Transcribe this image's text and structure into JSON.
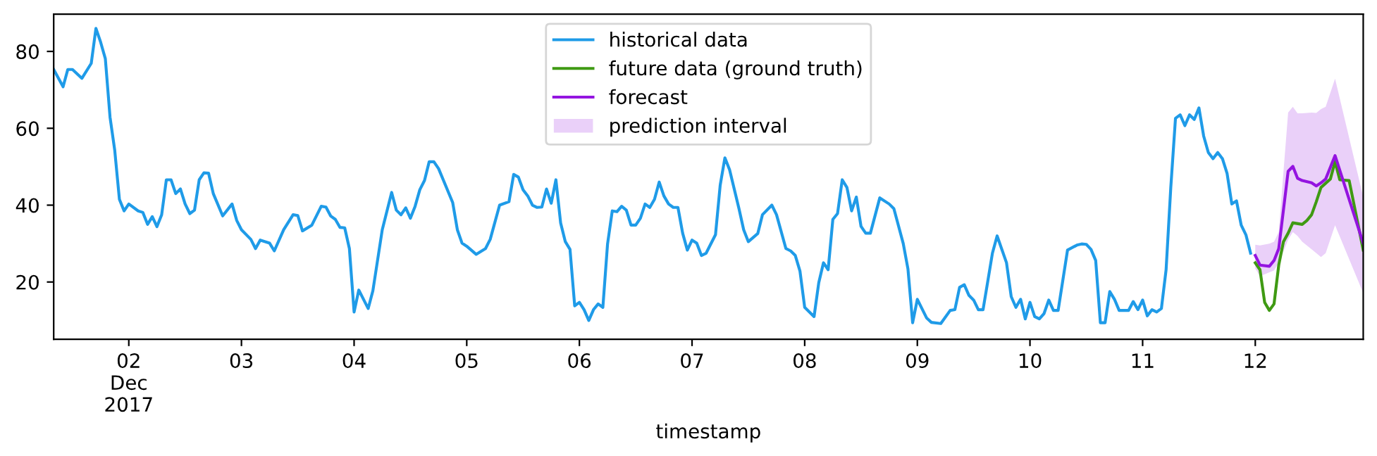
{
  "chart_data": {
    "type": "line",
    "xlabel": "timestamp",
    "legend": "top",
    "grid": false,
    "xlim": [
      "2017-12-01T08:00",
      "2017-12-12T23:00"
    ],
    "ylim": [
      5.1,
      89.7
    ],
    "yticks": [
      20,
      40,
      60,
      80
    ],
    "xticks": [
      {
        "value": "2017-12-02",
        "label": "02\nDec\n2017"
      },
      {
        "value": "2017-12-03",
        "label": "03"
      },
      {
        "value": "2017-12-04",
        "label": "04"
      },
      {
        "value": "2017-12-05",
        "label": "05"
      },
      {
        "value": "2017-12-06",
        "label": "06"
      },
      {
        "value": "2017-12-07",
        "label": "07"
      },
      {
        "value": "2017-12-08",
        "label": "08"
      },
      {
        "value": "2017-12-09",
        "label": "09"
      },
      {
        "value": "2017-12-10",
        "label": "10"
      },
      {
        "value": "2017-12-11",
        "label": "11"
      },
      {
        "value": "2017-12-12",
        "label": "12"
      }
    ],
    "series": [
      {
        "name": "historical data",
        "color": "#1f9be8",
        "x": [
          "2017-12-01T08:00",
          "2017-12-01T10:00",
          "2017-12-01T11:00",
          "2017-12-01T12:00",
          "2017-12-01T14:00",
          "2017-12-01T16:00",
          "2017-12-01T17:00",
          "2017-12-01T18:00",
          "2017-12-01T19:00",
          "2017-12-01T20:00",
          "2017-12-01T21:00",
          "2017-12-01T22:00",
          "2017-12-01T23:00",
          "2017-12-02T00:00",
          "2017-12-02T02:00",
          "2017-12-02T03:00",
          "2017-12-02T04:00",
          "2017-12-02T05:00",
          "2017-12-02T06:00",
          "2017-12-02T07:00",
          "2017-12-02T08:00",
          "2017-12-02T09:00",
          "2017-12-02T10:00",
          "2017-12-02T11:00",
          "2017-12-02T12:00",
          "2017-12-02T13:00",
          "2017-12-02T14:00",
          "2017-12-02T15:00",
          "2017-12-02T16:00",
          "2017-12-02T17:00",
          "2017-12-02T18:00",
          "2017-12-02T20:00",
          "2017-12-02T22:00",
          "2017-12-02T23:00",
          "2017-12-03T00:00",
          "2017-12-03T02:00",
          "2017-12-03T03:00",
          "2017-12-03T04:00",
          "2017-12-03T06:00",
          "2017-12-03T07:00",
          "2017-12-03T09:00",
          "2017-12-03T11:00",
          "2017-12-03T12:00",
          "2017-12-03T13:00",
          "2017-12-03T15:00",
          "2017-12-03T17:00",
          "2017-12-03T18:00",
          "2017-12-03T19:00",
          "2017-12-03T20:00",
          "2017-12-03T21:00",
          "2017-12-03T22:00",
          "2017-12-03T23:00",
          "2017-12-04T00:00",
          "2017-12-04T01:00",
          "2017-12-04T03:00",
          "2017-12-04T04:00",
          "2017-12-04T06:00",
          "2017-12-04T08:00",
          "2017-12-04T09:00",
          "2017-12-04T10:00",
          "2017-12-04T11:00",
          "2017-12-04T12:00",
          "2017-12-04T13:00",
          "2017-12-04T14:00",
          "2017-12-04T15:00",
          "2017-12-04T16:00",
          "2017-12-04T17:00",
          "2017-12-04T18:00",
          "2017-12-04T21:00",
          "2017-12-04T22:00",
          "2017-12-04T23:00",
          "2017-12-05T00:00",
          "2017-12-05T02:00",
          "2017-12-05T04:00",
          "2017-12-05T05:00",
          "2017-12-05T07:00",
          "2017-12-05T09:00",
          "2017-12-05T10:00",
          "2017-12-05T11:00",
          "2017-12-05T12:00",
          "2017-12-05T13:00",
          "2017-12-05T14:00",
          "2017-12-05T15:00",
          "2017-12-05T16:00",
          "2017-12-05T17:00",
          "2017-12-05T18:00",
          "2017-12-05T19:00",
          "2017-12-05T20:00",
          "2017-12-05T21:00",
          "2017-12-05T22:00",
          "2017-12-05T23:00",
          "2017-12-06T00:00",
          "2017-12-06T01:00",
          "2017-12-06T02:00",
          "2017-12-06T03:00",
          "2017-12-06T04:00",
          "2017-12-06T05:00",
          "2017-12-06T06:00",
          "2017-12-06T07:00",
          "2017-12-06T08:00",
          "2017-12-06T09:00",
          "2017-12-06T10:00",
          "2017-12-06T11:00",
          "2017-12-06T12:00",
          "2017-12-06T13:00",
          "2017-12-06T14:00",
          "2017-12-06T15:00",
          "2017-12-06T16:00",
          "2017-12-06T17:00",
          "2017-12-06T18:00",
          "2017-12-06T19:00",
          "2017-12-06T20:00",
          "2017-12-06T21:00",
          "2017-12-06T22:00",
          "2017-12-06T23:00",
          "2017-12-07T00:00",
          "2017-12-07T01:00",
          "2017-12-07T02:00",
          "2017-12-07T03:00",
          "2017-12-07T05:00",
          "2017-12-07T06:00",
          "2017-12-07T07:00",
          "2017-12-07T08:00",
          "2017-12-07T10:00",
          "2017-12-07T11:00",
          "2017-12-07T12:00",
          "2017-12-07T14:00",
          "2017-12-07T15:00",
          "2017-12-07T17:00",
          "2017-12-07T18:00",
          "2017-12-07T20:00",
          "2017-12-07T21:00",
          "2017-12-07T22:00",
          "2017-12-07T23:00",
          "2017-12-08T00:00",
          "2017-12-08T02:00",
          "2017-12-08T03:00",
          "2017-12-08T04:00",
          "2017-12-08T05:00",
          "2017-12-08T06:00",
          "2017-12-08T07:00",
          "2017-12-08T08:00",
          "2017-12-08T09:00",
          "2017-12-08T10:00",
          "2017-12-08T11:00",
          "2017-12-08T12:00",
          "2017-12-08T13:00",
          "2017-12-08T14:00",
          "2017-12-08T16:00",
          "2017-12-08T18:00",
          "2017-12-08T19:00",
          "2017-12-08T21:00",
          "2017-12-08T22:00",
          "2017-12-08T23:00",
          "2017-12-09T00:00",
          "2017-12-09T02:00",
          "2017-12-09T03:00",
          "2017-12-09T05:00",
          "2017-12-09T07:00",
          "2017-12-09T08:00",
          "2017-12-09T09:00",
          "2017-12-09T10:00",
          "2017-12-09T11:00",
          "2017-12-09T12:00",
          "2017-12-09T13:00",
          "2017-12-09T14:00",
          "2017-12-09T15:00",
          "2017-12-09T16:00",
          "2017-12-09T17:00",
          "2017-12-09T19:00",
          "2017-12-09T20:00",
          "2017-12-09T21:00",
          "2017-12-09T22:00",
          "2017-12-09T23:00",
          "2017-12-10T00:00",
          "2017-12-10T01:00",
          "2017-12-10T02:00",
          "2017-12-10T03:00",
          "2017-12-10T04:00",
          "2017-12-10T05:00",
          "2017-12-10T06:00",
          "2017-12-10T08:00",
          "2017-12-10T10:00",
          "2017-12-10T11:00",
          "2017-12-10T12:00",
          "2017-12-10T13:00",
          "2017-12-10T14:00",
          "2017-12-10T15:00",
          "2017-12-10T16:00",
          "2017-12-10T17:00",
          "2017-12-10T18:00",
          "2017-12-10T19:00",
          "2017-12-10T21:00",
          "2017-12-10T22:00",
          "2017-12-10T23:00",
          "2017-12-11T00:00",
          "2017-12-11T01:00",
          "2017-12-11T02:00",
          "2017-12-11T03:00",
          "2017-12-11T04:00",
          "2017-12-11T05:00",
          "2017-12-11T06:00",
          "2017-12-11T07:00",
          "2017-12-11T08:00",
          "2017-12-11T09:00",
          "2017-12-11T10:00",
          "2017-12-11T11:00",
          "2017-12-11T12:00",
          "2017-12-11T13:00",
          "2017-12-11T14:00",
          "2017-12-11T15:00",
          "2017-12-11T16:00",
          "2017-12-11T17:00",
          "2017-12-11T18:00",
          "2017-12-11T19:00",
          "2017-12-11T20:00",
          "2017-12-11T21:00",
          "2017-12-11T22:00",
          "2017-12-11T23:00"
        ],
        "values": [
          75.3,
          70.8,
          75.3,
          75.3,
          73,
          76.9,
          86,
          82.4,
          78.1,
          62.9,
          54.3,
          41.5,
          38.5,
          40.3,
          38.5,
          38.1,
          35,
          37,
          34.4,
          37.5,
          46.6,
          46.6,
          43,
          44.2,
          40.3,
          37.8,
          38.7,
          46.6,
          48.4,
          48.3,
          43,
          37.2,
          40.3,
          36,
          33.6,
          31.1,
          28.7,
          30.9,
          30.1,
          28.1,
          33.6,
          37.5,
          37.3,
          33.3,
          34.8,
          39.7,
          39.5,
          37.2,
          36.3,
          34.2,
          34.1,
          28.7,
          12.2,
          17.9,
          13.1,
          17.7,
          33.6,
          43.3,
          38.7,
          37.5,
          39.3,
          36.6,
          39.7,
          44,
          46.4,
          51.3,
          51.3,
          49.5,
          40.7,
          33.6,
          30.1,
          29.3,
          27.2,
          28.7,
          31.1,
          40,
          40.9,
          48,
          47.3,
          44,
          42.4,
          40,
          39.4,
          39.5,
          44.2,
          40.5,
          46.6,
          35.4,
          30.5,
          28.5,
          13.8,
          14.7,
          12.8,
          10,
          12.8,
          14.3,
          13.4,
          29.9,
          38.5,
          38.3,
          39.7,
          38.7,
          34.8,
          34.8,
          36.6,
          40.3,
          39.4,
          41.5,
          46,
          42.4,
          40.3,
          39.4,
          39.4,
          32.7,
          28.3,
          30.9,
          30.1,
          26.9,
          27.5,
          32.3,
          45.2,
          52.3,
          49.2,
          39.1,
          33.6,
          30.5,
          32.6,
          37.5,
          40,
          37.5,
          28.7,
          28.1,
          26.9,
          22.8,
          13.4,
          11,
          19.8,
          25,
          23.2,
          36.3,
          37.8,
          46.6,
          44.6,
          38.5,
          42.1,
          34.5,
          32.7,
          32.7,
          41.9,
          40.3,
          39.1,
          30,
          23.4,
          9.4,
          15.5,
          10.6,
          9.5,
          9.2,
          12.6,
          12.8,
          18.6,
          19.3,
          16.5,
          15.3,
          12.8,
          12.8,
          20.1,
          27.5,
          32,
          25,
          16.2,
          13.4,
          15.5,
          10.4,
          14.7,
          11,
          10.4,
          11.8,
          15.3,
          12.6,
          12.6,
          28.3,
          29.6,
          29.9,
          29.8,
          28.5,
          25.6,
          9.4,
          9.4,
          17.5,
          15.5,
          12.6,
          12.6,
          14.9,
          12.8,
          15.3,
          11.2,
          12.8,
          12.2,
          13.1,
          23.2,
          44.6,
          62.6,
          63.5,
          60.7,
          63.5,
          62.3,
          65.3,
          58,
          53.7,
          52.1,
          53.7,
          52.1,
          48.2,
          40.3,
          41.1,
          34.8,
          32.3,
          27.5
        ]
      },
      {
        "name": "future data (ground truth)",
        "color": "#3f9a13",
        "x": [
          "2017-12-12T00:00",
          "2017-12-12T01:00",
          "2017-12-12T02:00",
          "2017-12-12T03:00",
          "2017-12-12T04:00",
          "2017-12-12T05:00",
          "2017-12-12T06:00",
          "2017-12-12T07:00",
          "2017-12-12T08:00",
          "2017-12-12T10:00",
          "2017-12-12T11:00",
          "2017-12-12T12:00",
          "2017-12-12T13:00",
          "2017-12-12T14:00",
          "2017-12-12T16:00",
          "2017-12-12T17:00",
          "2017-12-12T18:00",
          "2017-12-12T20:00",
          "2017-12-12T23:00"
        ],
        "values": [
          25,
          23.2,
          14.7,
          12.6,
          14.3,
          24.4,
          30.5,
          32.7,
          35.4,
          35,
          36,
          37.5,
          40.9,
          44.6,
          46.8,
          51.3,
          46.6,
          46.4,
          28.3
        ]
      },
      {
        "name": "forecast",
        "color": "#9414e0",
        "x": [
          "2017-12-12T00:00",
          "2017-12-12T01:00",
          "2017-12-12T03:00",
          "2017-12-12T04:00",
          "2017-12-12T05:00",
          "2017-12-12T07:00",
          "2017-12-12T08:00",
          "2017-12-12T09:00",
          "2017-12-12T10:00",
          "2017-12-12T12:00",
          "2017-12-12T13:00",
          "2017-12-12T14:00",
          "2017-12-12T15:00",
          "2017-12-12T17:00",
          "2017-12-12T23:00"
        ],
        "values": [
          26.9,
          24.4,
          24.1,
          25.6,
          28.7,
          48.8,
          50.1,
          47,
          46.4,
          45.8,
          45,
          45.8,
          46.8,
          52.9,
          30.1
        ],
        "lower": [
          23.5,
          21.5,
          22.5,
          23,
          25,
          31,
          33,
          32,
          30.5,
          28.5,
          27.5,
          26.5,
          27.5,
          34.8,
          17.1
        ],
        "upper": [
          29.7,
          29.5,
          30,
          30.5,
          33,
          64.1,
          65.6,
          63.9,
          63.9,
          64.1,
          64,
          65,
          65.6,
          72.9,
          42.1
        ]
      }
    ],
    "annotations": [
      "prediction interval"
    ]
  }
}
